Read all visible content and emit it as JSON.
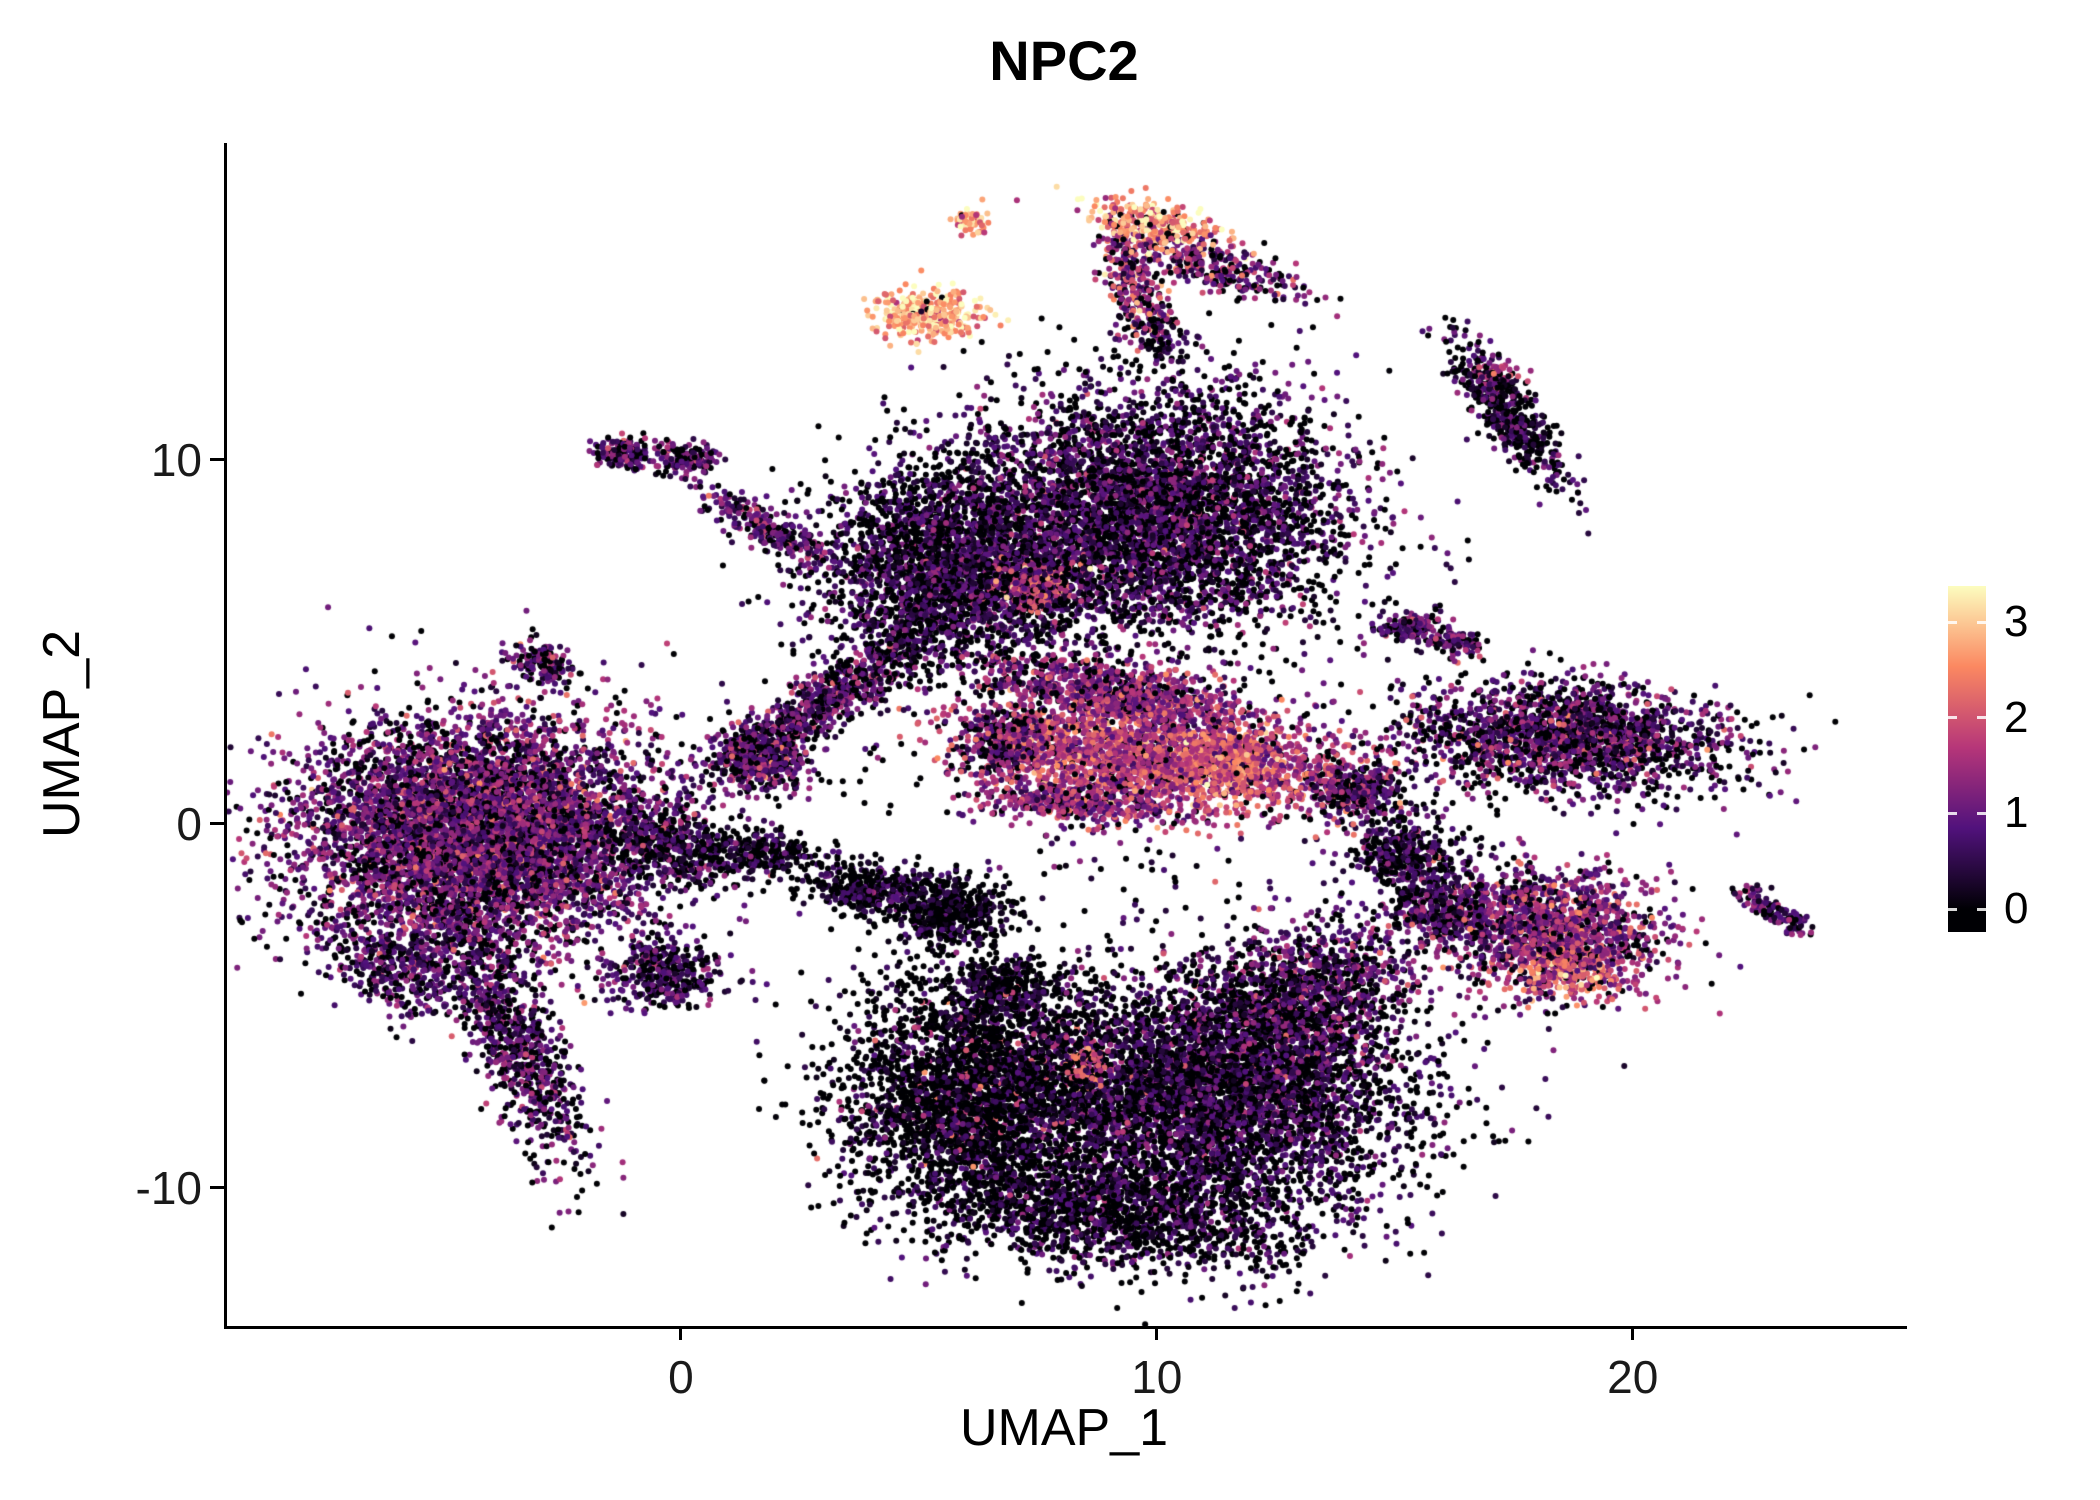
{
  "chart": {
    "title": "NPC2",
    "xlabel": "UMAP_1",
    "ylabel": "UMAP_2"
  },
  "chart_data": {
    "type": "scatter",
    "subtype": "umap-feature-plot",
    "title": "NPC2",
    "xlabel": "UMAP_1",
    "ylabel": "UMAP_2",
    "xlim": [
      -9.6,
      25.7
    ],
    "ylim": [
      -13.8,
      18.7
    ],
    "x_ticks": [
      0,
      10,
      20
    ],
    "y_ticks": [
      -10,
      0,
      10
    ],
    "grid": false,
    "point_radius_px": 3.0,
    "expression_max": 3.38,
    "legend": {
      "type": "colorbar",
      "position": "right",
      "ticks": [
        0,
        1,
        2,
        3
      ],
      "limits": [
        -0.24,
        3.38
      ],
      "colormap_name": "magma",
      "colormap": [
        [
          0.0,
          "#000004"
        ],
        [
          0.25,
          "#51127c"
        ],
        [
          0.5,
          "#b63679"
        ],
        [
          0.75,
          "#fb8861"
        ],
        [
          1.0,
          "#fcfdbf"
        ]
      ]
    },
    "clusters": [
      {
        "name": "left-body",
        "cx": -4.3,
        "cy": -0.3,
        "sx": 1.9,
        "sy": 1.6,
        "angle": 0,
        "n": 6500,
        "expr_mean": 1.0,
        "expr_sd": 0.55,
        "zero_frac": 0.18
      },
      {
        "name": "left-tail",
        "cx": -3.6,
        "cy": -5.8,
        "sx": 1.9,
        "sy": 0.45,
        "angle": -71,
        "n": 900,
        "expr_mean": 0.8,
        "expr_sd": 0.5,
        "zero_frac": 0.25
      },
      {
        "name": "left-tail-offshoot",
        "cx": -6.0,
        "cy": -4.0,
        "sx": 0.8,
        "sy": 0.5,
        "angle": -45,
        "n": 350,
        "expr_mean": 0.7,
        "expr_sd": 0.4,
        "zero_frac": 0.3
      },
      {
        "name": "left-sub-bottom",
        "cx": -0.4,
        "cy": -4.1,
        "sx": 0.55,
        "sy": 0.45,
        "angle": 0,
        "n": 380,
        "expr_mean": 0.65,
        "expr_sd": 0.4,
        "zero_frac": 0.3
      },
      {
        "name": "dark-right-of-left",
        "cx": -0.1,
        "cy": -0.7,
        "sx": 0.9,
        "sy": 0.55,
        "angle": -20,
        "n": 450,
        "expr_mean": 0.55,
        "expr_sd": 0.4,
        "zero_frac": 0.45
      },
      {
        "name": "tiny-topleft-a",
        "cx": -1.2,
        "cy": 10.2,
        "sx": 0.35,
        "sy": 0.2,
        "angle": 10,
        "n": 180,
        "expr_mean": 0.9,
        "expr_sd": 0.5,
        "zero_frac": 0.2
      },
      {
        "name": "tiny-topleft-b",
        "cx": 0.1,
        "cy": 10.0,
        "sx": 0.3,
        "sy": 0.2,
        "angle": 0,
        "n": 150,
        "expr_mean": 0.9,
        "expr_sd": 0.5,
        "zero_frac": 0.2
      },
      {
        "name": "streak-topleft",
        "cx": 1.8,
        "cy": 8.05,
        "sx": 0.95,
        "sy": 0.22,
        "angle": -37,
        "n": 280,
        "expr_mean": 0.9,
        "expr_sd": 0.5,
        "zero_frac": 0.2
      },
      {
        "name": "tiny-left-mid",
        "cx": -3.0,
        "cy": 4.4,
        "sx": 0.4,
        "sy": 0.25,
        "angle": -30,
        "n": 140,
        "expr_mean": 0.9,
        "expr_sd": 0.5,
        "zero_frac": 0.2
      },
      {
        "name": "bright-dot-top",
        "cx": 6.0,
        "cy": 16.6,
        "sx": 0.18,
        "sy": 0.22,
        "angle": 0,
        "n": 70,
        "expr_mean": 2.7,
        "expr_sd": 0.5,
        "zero_frac": 0.02
      },
      {
        "name": "bright-cluster-top",
        "cx": 5.1,
        "cy": 14.0,
        "sx": 0.55,
        "sy": 0.35,
        "angle": -10,
        "n": 380,
        "expr_mean": 2.8,
        "expr_sd": 0.45,
        "zero_frac": 0.02
      },
      {
        "name": "arc-bright",
        "cx": 9.9,
        "cy": 16.4,
        "sx": 0.8,
        "sy": 0.3,
        "angle": -15,
        "n": 320,
        "expr_mean": 2.6,
        "expr_sd": 0.6,
        "zero_frac": 0.05
      },
      {
        "name": "arc-down",
        "cx": 9.4,
        "cy": 14.9,
        "sx": 0.9,
        "sy": 0.3,
        "angle": -75,
        "n": 280,
        "expr_mean": 1.4,
        "expr_sd": 0.7,
        "zero_frac": 0.1
      },
      {
        "name": "arc-hook-right",
        "cx": 11.2,
        "cy": 15.3,
        "sx": 1.0,
        "sy": 0.3,
        "angle": -21,
        "n": 300,
        "expr_mean": 1.1,
        "expr_sd": 0.6,
        "zero_frac": 0.2
      },
      {
        "name": "arc-dangle",
        "cx": 10.0,
        "cy": 13.4,
        "sx": 0.3,
        "sy": 0.5,
        "angle": 0,
        "n": 90,
        "expr_mean": 0.6,
        "expr_sd": 0.4,
        "zero_frac": 0.4
      },
      {
        "name": "top-main-right",
        "cx": 9.8,
        "cy": 8.5,
        "sx": 2.0,
        "sy": 1.7,
        "angle": 0,
        "n": 5200,
        "expr_mean": 0.7,
        "expr_sd": 0.5,
        "zero_frac": 0.35
      },
      {
        "name": "top-main-left",
        "cx": 5.5,
        "cy": 7.0,
        "sx": 1.3,
        "sy": 1.4,
        "angle": 0,
        "n": 2600,
        "expr_mean": 0.6,
        "expr_sd": 0.45,
        "zero_frac": 0.4
      },
      {
        "name": "top-main-hotspot",
        "cx": 7.3,
        "cy": 6.6,
        "sx": 0.4,
        "sy": 0.35,
        "angle": 0,
        "n": 260,
        "expr_mean": 1.8,
        "expr_sd": 0.5,
        "zero_frac": 0.05
      },
      {
        "name": "funnel-stream",
        "cx": 3.0,
        "cy": 3.4,
        "sx": 1.5,
        "sy": 0.35,
        "angle": 42,
        "n": 750,
        "expr_mean": 0.8,
        "expr_sd": 0.5,
        "zero_frac": 0.25
      },
      {
        "name": "funnel-end",
        "cx": 1.6,
        "cy": 1.8,
        "sx": 0.5,
        "sy": 0.4,
        "angle": -30,
        "n": 450,
        "expr_mean": 1.0,
        "expr_sd": 0.6,
        "zero_frac": 0.15
      },
      {
        "name": "pink-band-upper",
        "cx": 9.0,
        "cy": 3.6,
        "sx": 1.5,
        "sy": 0.4,
        "angle": -12,
        "n": 850,
        "expr_mean": 1.2,
        "expr_sd": 0.5,
        "zero_frac": 0.12
      },
      {
        "name": "pink-band-main",
        "cx": 9.9,
        "cy": 1.9,
        "sx": 2.0,
        "sy": 0.75,
        "angle": -8,
        "n": 2300,
        "expr_mean": 1.7,
        "expr_sd": 0.5,
        "zero_frac": 0.08
      },
      {
        "name": "pink-band-tip",
        "cx": 11.5,
        "cy": 1.7,
        "sx": 0.5,
        "sy": 0.4,
        "angle": 0,
        "n": 420,
        "expr_mean": 2.3,
        "expr_sd": 0.4,
        "zero_frac": 0.02
      },
      {
        "name": "pink-band-lower",
        "cx": 8.3,
        "cy": 0.6,
        "sx": 1.0,
        "sy": 0.3,
        "angle": -5,
        "n": 420,
        "expr_mean": 1.3,
        "expr_sd": 0.5,
        "zero_frac": 0.1
      },
      {
        "name": "small-left-of-band",
        "cx": 6.8,
        "cy": 2.3,
        "sx": 0.4,
        "sy": 0.5,
        "angle": 0,
        "n": 300,
        "expr_mean": 0.9,
        "expr_sd": 0.5,
        "zero_frac": 0.2
      },
      {
        "name": "mid-dark-a",
        "cx": 3.9,
        "cy": -1.8,
        "sx": 0.65,
        "sy": 0.35,
        "angle": -10,
        "n": 380,
        "expr_mean": 0.5,
        "expr_sd": 0.4,
        "zero_frac": 0.4
      },
      {
        "name": "mid-dark-b",
        "cx": 5.6,
        "cy": -2.4,
        "sx": 0.6,
        "sy": 0.5,
        "angle": 0,
        "n": 480,
        "expr_mean": 0.3,
        "expr_sd": 0.3,
        "zero_frac": 0.55
      },
      {
        "name": "mid-dark-c",
        "cx": 6.6,
        "cy": -4.5,
        "sx": 0.5,
        "sy": 0.4,
        "angle": 0,
        "n": 260,
        "expr_mean": 0.45,
        "expr_sd": 0.35,
        "zero_frac": 0.5
      },
      {
        "name": "mid-tiny-d",
        "cx": 1.8,
        "cy": -0.8,
        "sx": 0.5,
        "sy": 0.3,
        "angle": 0,
        "n": 200,
        "expr_mean": 0.5,
        "expr_sd": 0.35,
        "zero_frac": 0.45
      },
      {
        "name": "bottom-left-lobe",
        "cx": 6.3,
        "cy": -7.4,
        "sx": 1.5,
        "sy": 1.6,
        "angle": 0,
        "n": 3200,
        "expr_mean": 0.35,
        "expr_sd": 0.35,
        "zero_frac": 0.55
      },
      {
        "name": "bottom-left-pinks",
        "cx": 6.3,
        "cy": -7.2,
        "sx": 1.4,
        "sy": 1.4,
        "angle": 0,
        "n": 160,
        "expr_mean": 1.7,
        "expr_sd": 0.5,
        "zero_frac": 0.0
      },
      {
        "name": "bottom-right-lobe",
        "cx": 11.2,
        "cy": -7.4,
        "sx": 2.0,
        "sy": 1.6,
        "angle": 0,
        "n": 4800,
        "expr_mean": 0.6,
        "expr_sd": 0.45,
        "zero_frac": 0.4
      },
      {
        "name": "bottom-tail",
        "cx": 9.0,
        "cy": -10.6,
        "sx": 1.9,
        "sy": 0.8,
        "angle": -8,
        "n": 1600,
        "expr_mean": 0.5,
        "expr_sd": 0.4,
        "zero_frac": 0.45
      },
      {
        "name": "bottom-upper-right",
        "cx": 13.0,
        "cy": -4.8,
        "sx": 1.3,
        "sy": 0.9,
        "angle": 40,
        "n": 1300,
        "expr_mean": 0.9,
        "expr_sd": 0.55,
        "zero_frac": 0.25
      },
      {
        "name": "bottom-hotspot",
        "cx": 8.5,
        "cy": -6.7,
        "sx": 0.25,
        "sy": 0.35,
        "angle": 0,
        "n": 90,
        "expr_mean": 2.1,
        "expr_sd": 0.5,
        "zero_frac": 0.0
      },
      {
        "name": "rightmid-a",
        "cx": 14.1,
        "cy": 0.9,
        "sx": 0.55,
        "sy": 0.4,
        "angle": 0,
        "n": 320,
        "expr_mean": 0.8,
        "expr_sd": 0.5,
        "zero_frac": 0.25
      },
      {
        "name": "rightmid-b",
        "cx": 15.1,
        "cy": -0.8,
        "sx": 0.6,
        "sy": 0.5,
        "angle": 0,
        "n": 380,
        "expr_mean": 0.6,
        "expr_sd": 0.45,
        "zero_frac": 0.35
      },
      {
        "name": "rightmid-c",
        "cx": 15.9,
        "cy": -2.3,
        "sx": 0.55,
        "sy": 0.45,
        "angle": -30,
        "n": 300,
        "expr_mean": 0.7,
        "expr_sd": 0.5,
        "zero_frac": 0.3
      },
      {
        "name": "right-pink",
        "cx": 18.2,
        "cy": -2.9,
        "sx": 1.2,
        "sy": 0.85,
        "angle": -15,
        "n": 1500,
        "expr_mean": 1.2,
        "expr_sd": 0.55,
        "zero_frac": 0.15
      },
      {
        "name": "right-pink-bright",
        "cx": 18.6,
        "cy": -4.0,
        "sx": 0.5,
        "sy": 0.35,
        "angle": 0,
        "n": 260,
        "expr_mean": 2.2,
        "expr_sd": 0.45,
        "zero_frac": 0.02
      },
      {
        "name": "farright-mid",
        "cx": 18.6,
        "cy": 2.4,
        "sx": 1.7,
        "sy": 0.75,
        "angle": -5,
        "n": 1900,
        "expr_mean": 0.8,
        "expr_sd": 0.5,
        "zero_frac": 0.3
      },
      {
        "name": "farright-mid-pinks",
        "cx": 18.3,
        "cy": 2.2,
        "sx": 1.4,
        "sy": 0.6,
        "angle": -5,
        "n": 110,
        "expr_mean": 1.8,
        "expr_sd": 0.4,
        "zero_frac": 0.0
      },
      {
        "name": "right-tiny-pair-a",
        "cx": 15.2,
        "cy": 5.4,
        "sx": 0.35,
        "sy": 0.2,
        "angle": 10,
        "n": 140,
        "expr_mean": 0.9,
        "expr_sd": 0.5,
        "zero_frac": 0.15
      },
      {
        "name": "right-tiny-pair-b",
        "cx": 16.2,
        "cy": 5.0,
        "sx": 0.3,
        "sy": 0.18,
        "angle": -15,
        "n": 110,
        "expr_mean": 0.8,
        "expr_sd": 0.5,
        "zero_frac": 0.2
      },
      {
        "name": "topright-streak",
        "cx": 17.3,
        "cy": 11.3,
        "sx": 1.1,
        "sy": 0.3,
        "angle": -62,
        "n": 520,
        "expr_mean": 0.6,
        "expr_sd": 0.45,
        "zero_frac": 0.35
      },
      {
        "name": "topright-streak-pink",
        "cx": 17.1,
        "cy": 12.4,
        "sx": 0.25,
        "sy": 0.15,
        "angle": 0,
        "n": 40,
        "expr_mean": 1.6,
        "expr_sd": 0.4,
        "zero_frac": 0.0
      },
      {
        "name": "farright-tiny",
        "cx": 22.9,
        "cy": -2.4,
        "sx": 0.5,
        "sy": 0.15,
        "angle": -38,
        "n": 130,
        "expr_mean": 0.95,
        "expr_sd": 0.5,
        "zero_frac": 0.15
      },
      {
        "name": "scatter-noise",
        "cx": 8.5,
        "cy": 0.5,
        "sx": 4.5,
        "sy": 4.5,
        "angle": 0,
        "n": 350,
        "expr_mean": 0.4,
        "expr_sd": 0.4,
        "zero_frac": 0.5
      }
    ]
  }
}
